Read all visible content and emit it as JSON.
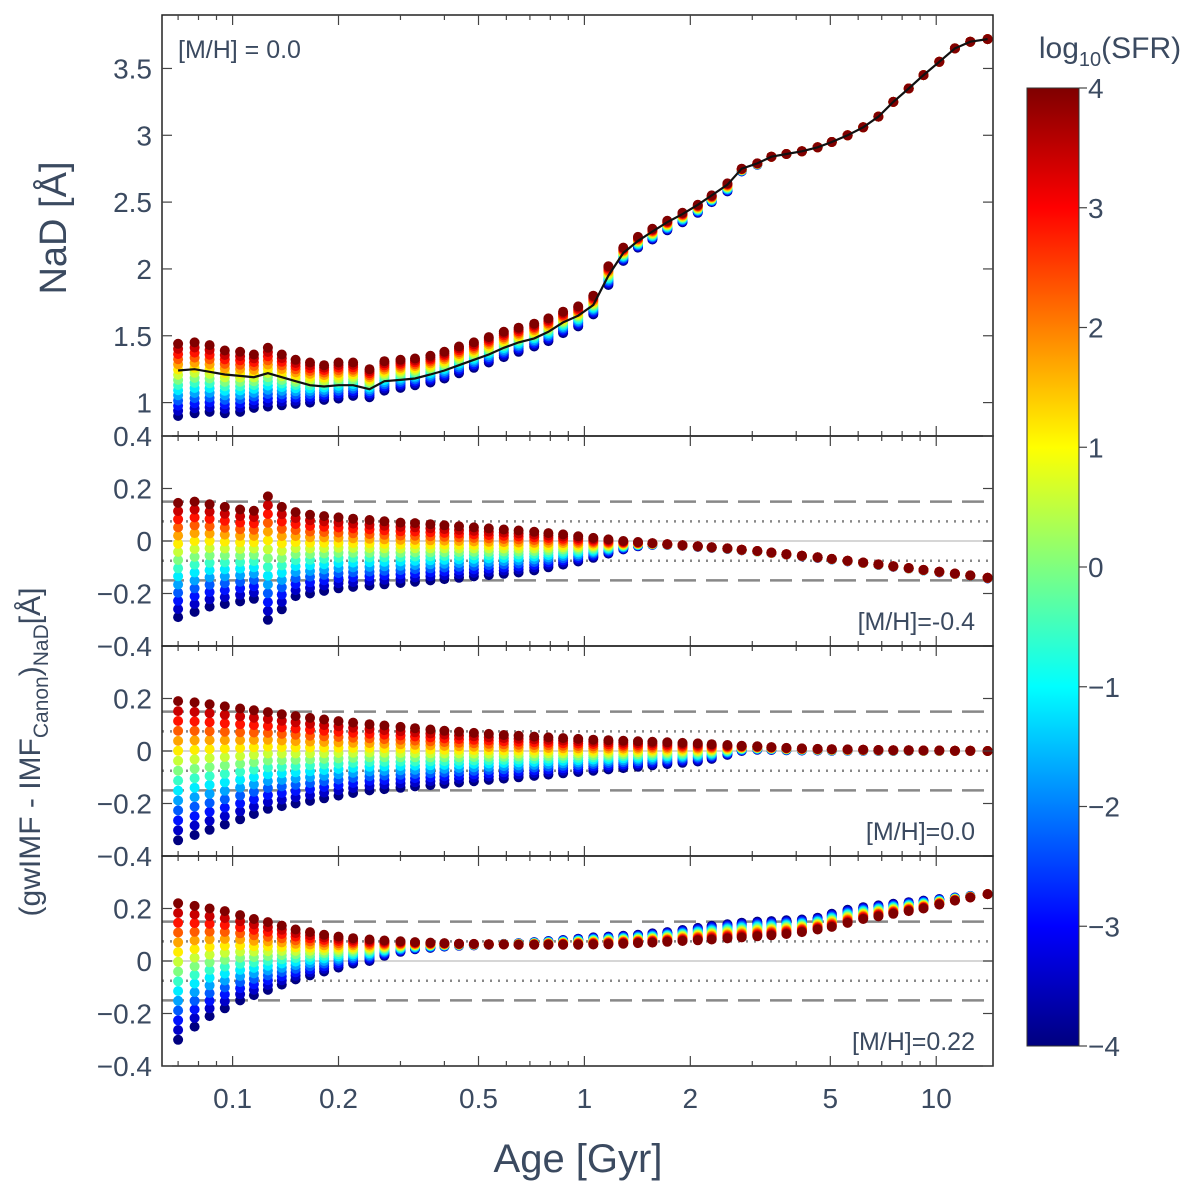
{
  "figure": {
    "xlabel": "Age [Gyr]",
    "top_ylabel": "NaD [Å]",
    "bottom_ylabel_main": "(gwIMF - IMF",
    "bottom_ylabel_sub1": "Canon",
    "bottom_ylabel_mid": ")",
    "bottom_ylabel_sub2": "NaD",
    "bottom_ylabel_end": "[Å]",
    "colorbar_label_main": "log",
    "colorbar_label_sub": "10",
    "colorbar_label_end": "(SFR)"
  },
  "chart_data": [
    {
      "type": "scatter",
      "panel": "top",
      "annotation": "[M/H] = 0.0",
      "xscale": "log",
      "xlim": [
        0.063,
        14.5
      ],
      "ylim": [
        0.75,
        3.9
      ],
      "xticks": [
        0.1,
        0.2,
        0.5,
        1,
        2,
        5,
        10
      ],
      "xtick_labels": [
        "0.1",
        "0.2",
        "0.5",
        "1",
        "2",
        "5",
        "10"
      ],
      "yticks": [
        1,
        1.5,
        2,
        2.5,
        3,
        3.5
      ],
      "ytick_labels": [
        "1",
        "1.5",
        "2",
        "2.5",
        "3",
        "3.5"
      ],
      "reference_line": "canonical IMF (black)",
      "x": [
        0.07,
        0.078,
        0.086,
        0.095,
        0.105,
        0.115,
        0.126,
        0.138,
        0.151,
        0.166,
        0.182,
        0.2,
        0.22,
        0.245,
        0.27,
        0.3,
        0.33,
        0.365,
        0.4,
        0.44,
        0.485,
        0.535,
        0.59,
        0.65,
        0.72,
        0.79,
        0.87,
        0.96,
        1.06,
        1.17,
        1.29,
        1.42,
        1.56,
        1.72,
        1.9,
        2.1,
        2.3,
        2.55,
        2.8,
        3.1,
        3.4,
        3.75,
        4.15,
        4.6,
        5.05,
        5.6,
        6.2,
        6.85,
        7.55,
        8.35,
        9.2,
        10.2,
        11.3,
        12.5,
        14.0
      ],
      "canon": [
        1.24,
        1.25,
        1.23,
        1.21,
        1.2,
        1.19,
        1.22,
        1.19,
        1.16,
        1.13,
        1.12,
        1.13,
        1.13,
        1.1,
        1.16,
        1.17,
        1.18,
        1.21,
        1.24,
        1.28,
        1.32,
        1.36,
        1.41,
        1.45,
        1.48,
        1.53,
        1.6,
        1.65,
        1.73,
        1.95,
        2.12,
        2.21,
        2.28,
        2.35,
        2.41,
        2.48,
        2.55,
        2.63,
        2.75,
        2.79,
        2.84,
        2.86,
        2.88,
        2.91,
        2.95,
        3.0,
        3.06,
        3.14,
        3.25,
        3.35,
        3.45,
        3.55,
        3.65,
        3.7,
        3.72
      ],
      "high_sfr": [
        1.44,
        1.45,
        1.43,
        1.39,
        1.38,
        1.36,
        1.41,
        1.36,
        1.32,
        1.3,
        1.28,
        1.3,
        1.3,
        1.25,
        1.31,
        1.32,
        1.33,
        1.35,
        1.38,
        1.42,
        1.45,
        1.49,
        1.53,
        1.56,
        1.59,
        1.63,
        1.68,
        1.72,
        1.8,
        2.02,
        2.16,
        2.24,
        2.3,
        2.36,
        2.42,
        2.48,
        2.55,
        2.64,
        2.75,
        2.79,
        2.84,
        2.86,
        2.88,
        2.91,
        2.95,
        3.0,
        3.06,
        3.14,
        3.25,
        3.35,
        3.45,
        3.55,
        3.65,
        3.7,
        3.72
      ],
      "low_sfr": [
        0.9,
        0.92,
        0.93,
        0.92,
        0.93,
        0.96,
        0.97,
        0.98,
        0.99,
        1.0,
        1.02,
        1.03,
        1.05,
        1.04,
        1.09,
        1.11,
        1.13,
        1.15,
        1.18,
        1.22,
        1.26,
        1.3,
        1.34,
        1.38,
        1.42,
        1.46,
        1.52,
        1.57,
        1.66,
        1.88,
        2.06,
        2.16,
        2.22,
        2.29,
        2.35,
        2.42,
        2.5,
        2.58,
        2.73,
        2.78,
        2.84,
        2.86,
        2.88,
        2.91,
        2.95,
        3.0,
        3.06,
        3.14,
        3.25,
        3.35,
        3.45,
        3.55,
        3.65,
        3.7,
        3.72
      ],
      "n_sfr_levels": 15
    },
    {
      "type": "scatter",
      "panel": "second",
      "annotation": "[M/H]=-0.4",
      "xscale": "log",
      "xlim": [
        0.063,
        14.5
      ],
      "ylim": [
        -0.4,
        0.4
      ],
      "yticks": [
        -0.4,
        -0.2,
        0,
        0.2,
        0.4
      ],
      "ytick_labels": [
        "−0.4",
        "−0.2",
        "0",
        "0.2",
        "0.4"
      ],
      "dashed_lines": [
        0.15,
        -0.15
      ],
      "dotted_lines": [
        0.075,
        -0.075
      ],
      "x": [
        0.07,
        0.078,
        0.086,
        0.095,
        0.105,
        0.115,
        0.126,
        0.138,
        0.151,
        0.166,
        0.182,
        0.2,
        0.22,
        0.245,
        0.27,
        0.3,
        0.33,
        0.365,
        0.4,
        0.44,
        0.485,
        0.535,
        0.59,
        0.65,
        0.72,
        0.79,
        0.87,
        0.96,
        1.06,
        1.17,
        1.29,
        1.42,
        1.56,
        1.72,
        1.9,
        2.1,
        2.3,
        2.55,
        2.8,
        3.1,
        3.4,
        3.75,
        4.15,
        4.6,
        5.05,
        5.6,
        6.2,
        6.85,
        7.55,
        8.35,
        9.2,
        10.2,
        11.3,
        12.5,
        14.0
      ],
      "high_sfr": [
        0.145,
        0.15,
        0.14,
        0.13,
        0.12,
        0.115,
        0.17,
        0.13,
        0.11,
        0.1,
        0.095,
        0.09,
        0.085,
        0.08,
        0.075,
        0.07,
        0.068,
        0.064,
        0.06,
        0.056,
        0.052,
        0.048,
        0.044,
        0.04,
        0.035,
        0.03,
        0.025,
        0.018,
        0.012,
        0.006,
        0.0,
        -0.004,
        -0.008,
        -0.012,
        -0.016,
        -0.02,
        -0.024,
        -0.028,
        -0.033,
        -0.038,
        -0.044,
        -0.05,
        -0.056,
        -0.062,
        -0.068,
        -0.075,
        -0.082,
        -0.089,
        -0.096,
        -0.103,
        -0.11,
        -0.117,
        -0.124,
        -0.131,
        -0.14
      ],
      "low_sfr": [
        -0.29,
        -0.27,
        -0.25,
        -0.24,
        -0.23,
        -0.22,
        -0.3,
        -0.26,
        -0.21,
        -0.2,
        -0.19,
        -0.18,
        -0.175,
        -0.17,
        -0.165,
        -0.16,
        -0.155,
        -0.15,
        -0.145,
        -0.14,
        -0.135,
        -0.13,
        -0.125,
        -0.12,
        -0.112,
        -0.1,
        -0.09,
        -0.078,
        -0.064,
        -0.048,
        -0.032,
        -0.02,
        -0.015,
        -0.015,
        -0.018,
        -0.022,
        -0.026,
        -0.03,
        -0.035,
        -0.04,
        -0.046,
        -0.052,
        -0.058,
        -0.064,
        -0.07,
        -0.077,
        -0.084,
        -0.091,
        -0.098,
        -0.105,
        -0.112,
        -0.119,
        -0.126,
        -0.133,
        -0.142
      ],
      "n_sfr_levels": 15
    },
    {
      "type": "scatter",
      "panel": "third",
      "annotation": "[M/H]=0.0",
      "xscale": "log",
      "xlim": [
        0.063,
        14.5
      ],
      "ylim": [
        -0.4,
        0.4
      ],
      "yticks": [
        -0.4,
        -0.2,
        0,
        0.2
      ],
      "ytick_labels": [
        "−0.4",
        "−0.2",
        "0",
        "0.2"
      ],
      "dashed_lines": [
        0.15,
        -0.15
      ],
      "dotted_lines": [
        0.075,
        -0.075
      ],
      "x": [
        0.07,
        0.078,
        0.086,
        0.095,
        0.105,
        0.115,
        0.126,
        0.138,
        0.151,
        0.166,
        0.182,
        0.2,
        0.22,
        0.245,
        0.27,
        0.3,
        0.33,
        0.365,
        0.4,
        0.44,
        0.485,
        0.535,
        0.59,
        0.65,
        0.72,
        0.79,
        0.87,
        0.96,
        1.06,
        1.17,
        1.29,
        1.42,
        1.56,
        1.72,
        1.9,
        2.1,
        2.3,
        2.55,
        2.8,
        3.1,
        3.4,
        3.75,
        4.15,
        4.6,
        5.05,
        5.6,
        6.2,
        6.85,
        7.55,
        8.35,
        9.2,
        10.2,
        11.3,
        12.5,
        14.0
      ],
      "high_sfr": [
        0.19,
        0.185,
        0.178,
        0.17,
        0.162,
        0.155,
        0.148,
        0.14,
        0.133,
        0.126,
        0.12,
        0.114,
        0.108,
        0.102,
        0.097,
        0.092,
        0.087,
        0.082,
        0.077,
        0.073,
        0.069,
        0.065,
        0.061,
        0.058,
        0.055,
        0.052,
        0.049,
        0.046,
        0.043,
        0.041,
        0.039,
        0.037,
        0.035,
        0.033,
        0.031,
        0.029,
        0.026,
        0.023,
        0.02,
        0.018,
        0.015,
        0.012,
        0.01,
        0.008,
        0.007,
        0.006,
        0.005,
        0.004,
        0.003,
        0.003,
        0.002,
        0.002,
        0.001,
        0.001,
        0.0
      ],
      "low_sfr": [
        -0.34,
        -0.32,
        -0.3,
        -0.28,
        -0.26,
        -0.24,
        -0.22,
        -0.21,
        -0.2,
        -0.19,
        -0.18,
        -0.17,
        -0.16,
        -0.15,
        -0.145,
        -0.14,
        -0.135,
        -0.13,
        -0.125,
        -0.12,
        -0.115,
        -0.11,
        -0.105,
        -0.1,
        -0.095,
        -0.09,
        -0.085,
        -0.08,
        -0.075,
        -0.07,
        -0.065,
        -0.06,
        -0.055,
        -0.05,
        -0.045,
        -0.04,
        -0.03,
        -0.015,
        0.0,
        0.005,
        0.004,
        0.003,
        0.002,
        0.002,
        0.001,
        0.001,
        0.001,
        0.0,
        0.0,
        0.0,
        0.0,
        0.0,
        0.0,
        0.0,
        0.0
      ],
      "n_sfr_levels": 15
    },
    {
      "type": "scatter",
      "panel": "bottom",
      "annotation": "[M/H]=0.22",
      "xscale": "log",
      "xlim": [
        0.063,
        14.5
      ],
      "ylim": [
        -0.4,
        0.4
      ],
      "yticks": [
        -0.4,
        -0.2,
        0,
        0.2
      ],
      "ytick_labels": [
        "−0.4",
        "−0.2",
        "0",
        "0.2"
      ],
      "dashed_lines": [
        0.15,
        -0.15
      ],
      "dotted_lines": [
        0.075,
        -0.075
      ],
      "x": [
        0.07,
        0.078,
        0.086,
        0.095,
        0.105,
        0.115,
        0.126,
        0.138,
        0.151,
        0.166,
        0.182,
        0.2,
        0.22,
        0.245,
        0.27,
        0.3,
        0.33,
        0.365,
        0.4,
        0.44,
        0.485,
        0.535,
        0.59,
        0.65,
        0.72,
        0.79,
        0.87,
        0.96,
        1.06,
        1.17,
        1.29,
        1.42,
        1.56,
        1.72,
        1.9,
        2.1,
        2.3,
        2.55,
        2.8,
        3.1,
        3.4,
        3.75,
        4.15,
        4.6,
        5.05,
        5.6,
        6.2,
        6.85,
        7.55,
        8.35,
        9.2,
        10.2,
        11.3,
        12.5,
        14.0
      ],
      "high_sfr": [
        0.22,
        0.21,
        0.2,
        0.19,
        0.175,
        0.16,
        0.148,
        0.135,
        0.12,
        0.11,
        0.1,
        0.093,
        0.087,
        0.082,
        0.078,
        0.075,
        0.072,
        0.07,
        0.068,
        0.066,
        0.065,
        0.064,
        0.063,
        0.062,
        0.062,
        0.062,
        0.062,
        0.062,
        0.063,
        0.064,
        0.066,
        0.068,
        0.07,
        0.073,
        0.076,
        0.079,
        0.082,
        0.086,
        0.09,
        0.094,
        0.098,
        0.103,
        0.11,
        0.12,
        0.13,
        0.145,
        0.16,
        0.17,
        0.18,
        0.19,
        0.2,
        0.215,
        0.23,
        0.242,
        0.255
      ],
      "low_sfr": [
        -0.3,
        -0.25,
        -0.21,
        -0.18,
        -0.15,
        -0.13,
        -0.11,
        -0.09,
        -0.07,
        -0.055,
        -0.04,
        -0.025,
        -0.01,
        0.0,
        0.02,
        0.035,
        0.045,
        0.05,
        0.055,
        0.058,
        0.06,
        0.062,
        0.065,
        0.068,
        0.072,
        0.076,
        0.08,
        0.085,
        0.09,
        0.093,
        0.096,
        0.1,
        0.105,
        0.11,
        0.118,
        0.126,
        0.134,
        0.14,
        0.146,
        0.15,
        0.152,
        0.155,
        0.158,
        0.165,
        0.18,
        0.195,
        0.205,
        0.212,
        0.218,
        0.224,
        0.23,
        0.236,
        0.242,
        0.248,
        0.255
      ],
      "n_sfr_levels": 15
    }
  ],
  "colorbar": {
    "colormap": "jet",
    "range": [
      -4,
      4
    ],
    "ticks": [
      -4,
      -3,
      -2,
      -1,
      0,
      1,
      2,
      3,
      4
    ],
    "tick_labels": [
      "−4",
      "−3",
      "−2",
      "−1",
      "0",
      "1",
      "2",
      "3",
      "4"
    ]
  }
}
